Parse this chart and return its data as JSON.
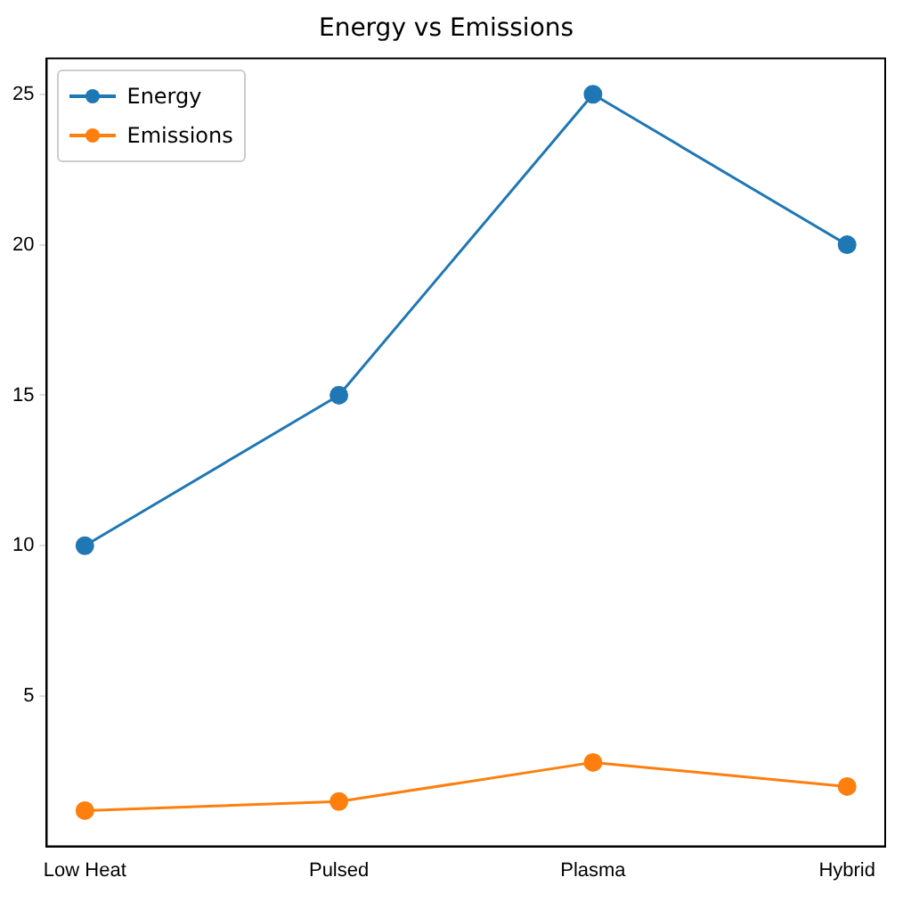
{
  "chart_data": {
    "type": "line",
    "title": "Energy vs Emissions",
    "categories": [
      "Low Heat",
      "Pulsed",
      "Plasma",
      "Hybrid"
    ],
    "series": [
      {
        "name": "Energy",
        "color": "#1f77b4",
        "values": [
          10,
          15,
          25,
          20
        ]
      },
      {
        "name": "Emissions",
        "color": "#ff7f0e",
        "values": [
          1.2,
          1.5,
          2.8,
          2.0
        ]
      }
    ],
    "ylim": [
      0.01,
      26.19
    ],
    "yticks": [
      5,
      10,
      15,
      20,
      25
    ],
    "grid": false,
    "legend": "top left",
    "marker": "circle",
    "line_style": "solid"
  }
}
